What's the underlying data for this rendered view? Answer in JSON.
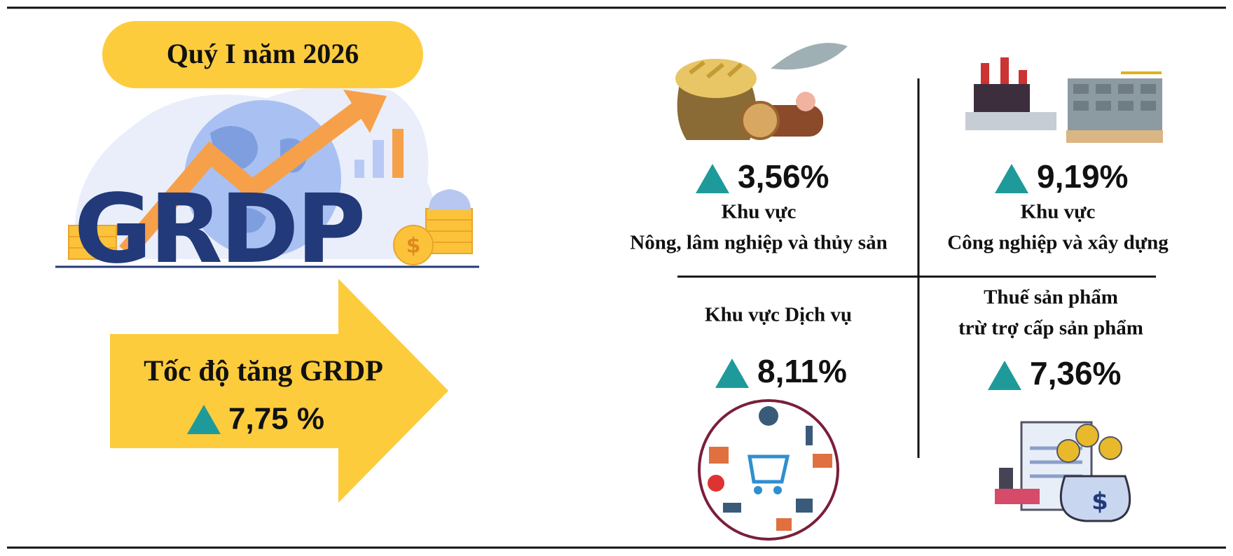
{
  "header": {
    "title": "Quý I năm 2026",
    "graphic_text": "GRDP"
  },
  "summary": {
    "label": "Tốc độ tăng GRDP",
    "value": "7,75 %"
  },
  "sectors": [
    {
      "value": "3,56%",
      "label_lines": [
        "Khu vực",
        "Nông, lâm nghiệp và thủy sản"
      ]
    },
    {
      "value": "9,19%",
      "label_lines": [
        "Khu vực",
        "Công nghiệp và xây dựng"
      ]
    },
    {
      "value": "8,11%",
      "label_lines": [
        "Khu vực Dịch vụ"
      ]
    },
    {
      "value": "7,36%",
      "label_lines": [
        "Thuế sản phẩm",
        "trừ trợ cấp sản phẩm"
      ]
    }
  ]
}
